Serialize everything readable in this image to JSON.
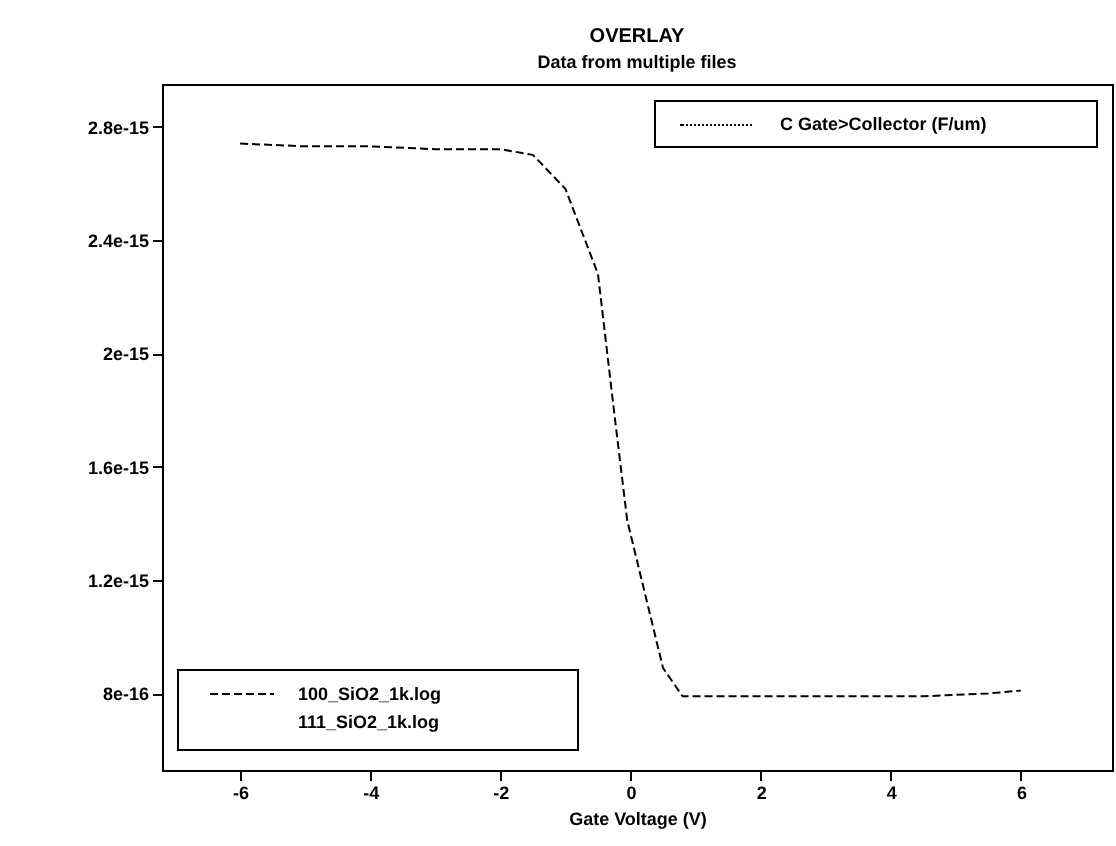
{
  "chart_data": {
    "type": "line",
    "title": "OVERLAY",
    "subtitle": "Data from multiple files",
    "xlabel": "Gate Voltage (V)",
    "ylabel": "C Gate>Collector (F/um)",
    "annotations": [
      "111_SiO2_1k.log"
    ],
    "x": [
      -6,
      -5,
      -4,
      -3,
      -2,
      -1.5,
      -1,
      -0.5,
      -0.25,
      -0.05,
      0.5,
      0.8,
      1.5,
      2.5,
      3.5,
      4.5,
      5.5,
      6
    ],
    "series": [
      {
        "name": "100_SiO2_1k.log",
        "color": "#000000",
        "values": [
          2.74e-15,
          2.73e-15,
          2.73e-15,
          2.72e-15,
          2.72e-15,
          2.7e-15,
          2.58e-15,
          2.28e-15,
          1.79e-15,
          1.41e-15,
          8.9e-16,
          7.9e-16,
          7.9e-16,
          7.9e-16,
          7.9e-16,
          7.9e-16,
          8e-16,
          8.1e-16
        ]
      }
    ],
    "xlim": [
      -7.2,
      7.4
    ],
    "xticks": [
      -6,
      -4,
      -2,
      0,
      2,
      4,
      6
    ],
    "ylim": [
      5.3e-16,
      2.95e-15
    ],
    "yticks": [
      {
        "value": 8e-16,
        "label": "8e-16"
      },
      {
        "value": 1.2e-15,
        "label": "1.2e-15"
      },
      {
        "value": 1.6e-15,
        "label": "1.6e-15"
      },
      {
        "value": 2e-15,
        "label": "2e-15"
      },
      {
        "value": 2.4e-15,
        "label": "2.4e-15"
      },
      {
        "value": 2.8e-15,
        "label": "2.8e-15"
      }
    ],
    "grid": false,
    "legend": "bottom left",
    "marker": "none",
    "line_style": "dashed"
  }
}
